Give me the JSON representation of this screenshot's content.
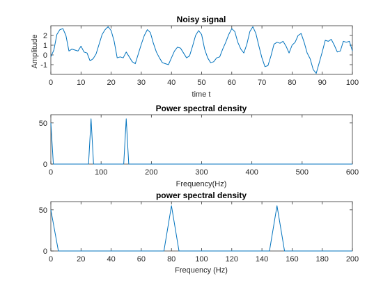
{
  "colors": {
    "series": "#0072bd",
    "axes": "#262626",
    "background": "#ffffff"
  },
  "chart_data": [
    {
      "type": "line",
      "title": "Noisy signal",
      "xlabel": "time t",
      "ylabel": "Amplitude",
      "xlim": [
        0,
        100
      ],
      "ylim": [
        -2,
        3
      ],
      "xticks": [
        0,
        10,
        20,
        30,
        40,
        50,
        60,
        70,
        80,
        90,
        100
      ],
      "yticks": [
        -1,
        0,
        1,
        2
      ],
      "grid": false,
      "series": [
        {
          "x": [
            0,
            1,
            2,
            3,
            4,
            5,
            6,
            7,
            8,
            9,
            10,
            11,
            12,
            13,
            14,
            15,
            16,
            17,
            18,
            19,
            20,
            21,
            22,
            23,
            24,
            25,
            26,
            27,
            28,
            29,
            30,
            31,
            32,
            33,
            34,
            35,
            36,
            37,
            38,
            39,
            40,
            41,
            42,
            43,
            44,
            45,
            46,
            47,
            48,
            49,
            50,
            51,
            52,
            53,
            54,
            55,
            56,
            57,
            58,
            59,
            60,
            61,
            62,
            63,
            64,
            65,
            66,
            67,
            68,
            69,
            70,
            71,
            72,
            73,
            74,
            75,
            76,
            77,
            78,
            79,
            80,
            81,
            82,
            83,
            84,
            85,
            86,
            87,
            88,
            89,
            90,
            91,
            92,
            93,
            94,
            95,
            96,
            97,
            98,
            99,
            100
          ],
          "y": [
            -0.2,
            0.5,
            2.1,
            2.6,
            2.7,
            2.0,
            0.4,
            0.6,
            0.5,
            0.4,
            0.9,
            0.3,
            0.2,
            -0.6,
            -0.4,
            0.1,
            1.1,
            2.1,
            2.6,
            2.9,
            2.5,
            1.4,
            -0.3,
            -0.2,
            -0.3,
            0.3,
            -0.2,
            -0.7,
            -0.9,
            0.1,
            1.1,
            2.0,
            2.6,
            2.3,
            1.2,
            0.3,
            -0.3,
            -0.8,
            -0.9,
            -1.0,
            -0.3,
            0.4,
            0.8,
            0.7,
            0.2,
            -0.3,
            -0.1,
            0.9,
            2.0,
            2.5,
            2.1,
            0.6,
            -0.3,
            -0.8,
            -0.7,
            -0.3,
            -0.2,
            0.6,
            1.3,
            2.1,
            2.7,
            2.4,
            1.3,
            0.6,
            0.2,
            1.1,
            2.4,
            2.9,
            2.2,
            0.9,
            -0.3,
            -1.2,
            -1.1,
            -0.1,
            1.1,
            1.3,
            1.2,
            1.4,
            0.9,
            0.2,
            1.0,
            1.3,
            2.0,
            2.2,
            1.3,
            0.2,
            -0.4,
            -1.5,
            -1.9,
            -0.8,
            0.3,
            1.5,
            1.4,
            1.6,
            1.0,
            0.3,
            0.4,
            1.4,
            1.3,
            1.4,
            0.4
          ]
        }
      ]
    },
    {
      "type": "line",
      "title": "Power spectral density",
      "xlabel": "Frequency(Hz)",
      "ylabel": "",
      "xlim": [
        0,
        600
      ],
      "ylim": [
        0,
        60
      ],
      "xticks": [
        0,
        100,
        200,
        300,
        400,
        500,
        600
      ],
      "yticks": [
        0,
        50
      ],
      "grid": false,
      "series": [
        {
          "x": [
            0,
            5,
            75,
            80,
            85,
            145,
            150,
            155,
            600
          ],
          "y": [
            50,
            0,
            0,
            55,
            0,
            0,
            55,
            0,
            0
          ]
        }
      ]
    },
    {
      "type": "line",
      "title": "power spectral density",
      "xlabel": "Frequency (Hz)",
      "ylabel": "",
      "xlim": [
        0,
        200
      ],
      "ylim": [
        0,
        60
      ],
      "xticks": [
        0,
        20,
        40,
        60,
        80,
        100,
        120,
        140,
        160,
        180,
        200
      ],
      "yticks": [
        0,
        50
      ],
      "grid": false,
      "series": [
        {
          "x": [
            0,
            5,
            75,
            80,
            85,
            145,
            150,
            155,
            200
          ],
          "y": [
            50,
            0,
            0,
            55,
            0,
            0,
            55,
            0,
            0
          ]
        }
      ]
    }
  ]
}
